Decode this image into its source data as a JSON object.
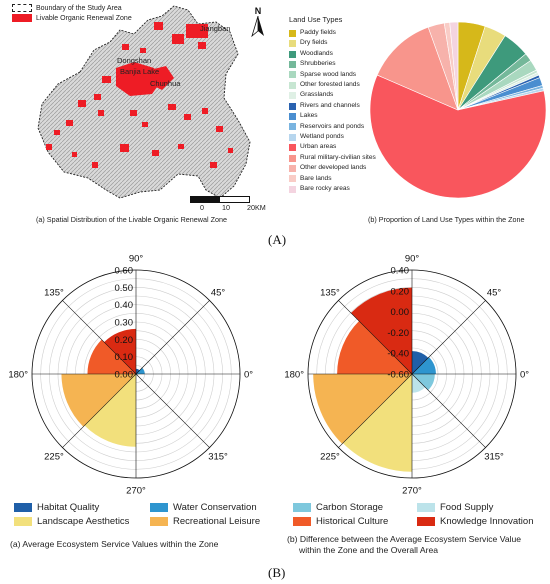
{
  "panel_a": {
    "letter": "(A)",
    "map": {
      "legend": {
        "boundary": "Boundary of the Study Area",
        "zone": "Livable Organic Renewal Zone"
      },
      "north": "N",
      "places": [
        "Jiangban",
        "Dongshan",
        "Banjia Lake",
        "Chunhua"
      ],
      "scale": {
        "left": "0",
        "mid": "10",
        "right": "20KM"
      },
      "caption": "(a) Spatial Distribution of the Livable Organic Renewal Zone"
    },
    "pie_caption": "(b) Proportion  of Land Use Types within the Zone"
  },
  "panel_b": {
    "letter": "(B)",
    "left_caption": "(a) Average Ecosystem Service Values within the Zone",
    "right_caption_1": "(b) Difference between the Average Ecosystem Service Value",
    "right_caption_2": "within the Zone and the Overall Area",
    "angle_labels": [
      "90°",
      "45°",
      "0°",
      "315°",
      "270°",
      "225°",
      "180°",
      "135°"
    ]
  },
  "chart_data": [
    {
      "type": "pie",
      "title": "Land Use Types",
      "categories": [
        "Paddy fields",
        "Dry fields",
        "Woodlands",
        "Shrubberies",
        "Sparse wood lands",
        "Other forested lands",
        "Grasslands",
        "Rivers and channels",
        "Lakes",
        "Reservoirs and ponds",
        "Wetland ponds",
        "Urban areas",
        "Rural military-civilian sites",
        "Other developed lands",
        "Bare lands",
        "Bare rocky areas"
      ],
      "values": [
        5.0,
        4.0,
        5.0,
        1.5,
        2.0,
        0.5,
        0.5,
        0.5,
        1.5,
        0.5,
        0.5,
        60.0,
        13.0,
        3.0,
        1.0,
        1.5
      ],
      "colors": [
        "#d6b81a",
        "#e8dc7c",
        "#3e9a7c",
        "#74b89a",
        "#a9d8bf",
        "#c7e6d2",
        "#dff0e5",
        "#2a62b0",
        "#4a8ed0",
        "#7ab4e0",
        "#b7d6ee",
        "#f9565d",
        "#f8958c",
        "#f7b2ab",
        "#f9ccc6",
        "#f4d4e0"
      ],
      "legend_position": "left"
    },
    {
      "type": "polar-bar",
      "title": "",
      "categories": [
        "Habitat Quality",
        "Water Conservation",
        "Carbon Storage",
        "Food Supply",
        "Landscape Aesthetics",
        "Recreational Leisure",
        "Historical Culture",
        "Knowledge Innovation"
      ],
      "colors": [
        "#1f5fa8",
        "#2e95cf",
        "#7ec8dd",
        "#bce3ea",
        "#f2e07c",
        "#f5b452",
        "#f05a28",
        "#d92a12"
      ],
      "sector_angles": [
        67.5,
        22.5,
        -22.5,
        -67.5,
        -112.5,
        -157.5,
        157.5,
        112.5
      ],
      "values": [
        0.03,
        0.05,
        0.01,
        0.005,
        0.42,
        0.43,
        0.28,
        0.26
      ],
      "radial_ticks": [
        0.0,
        0.1,
        0.2,
        0.3,
        0.4,
        0.5,
        0.6
      ],
      "rlim": [
        0,
        0.6
      ]
    },
    {
      "type": "polar-bar",
      "title": "",
      "categories": [
        "Habitat Quality",
        "Water Conservation",
        "Carbon Storage",
        "Food Supply",
        "Landscape Aesthetics",
        "Recreational Leisure",
        "Historical Culture",
        "Knowledge Innovation"
      ],
      "colors": [
        "#1f5fa8",
        "#2e95cf",
        "#7ec8dd",
        "#bce3ea",
        "#f2e07c",
        "#f5b452",
        "#f05a28",
        "#d92a12"
      ],
      "sector_angles": [
        67.5,
        22.5,
        -22.5,
        -67.5,
        -112.5,
        -157.5,
        157.5,
        112.5
      ],
      "values": [
        -0.38,
        -0.37,
        -0.38,
        -0.42,
        0.34,
        0.35,
        0.12,
        0.23
      ],
      "radial_ticks": [
        -0.6,
        -0.4,
        -0.2,
        0.0,
        0.2,
        0.4
      ],
      "rlim": [
        -0.6,
        0.4
      ]
    }
  ]
}
